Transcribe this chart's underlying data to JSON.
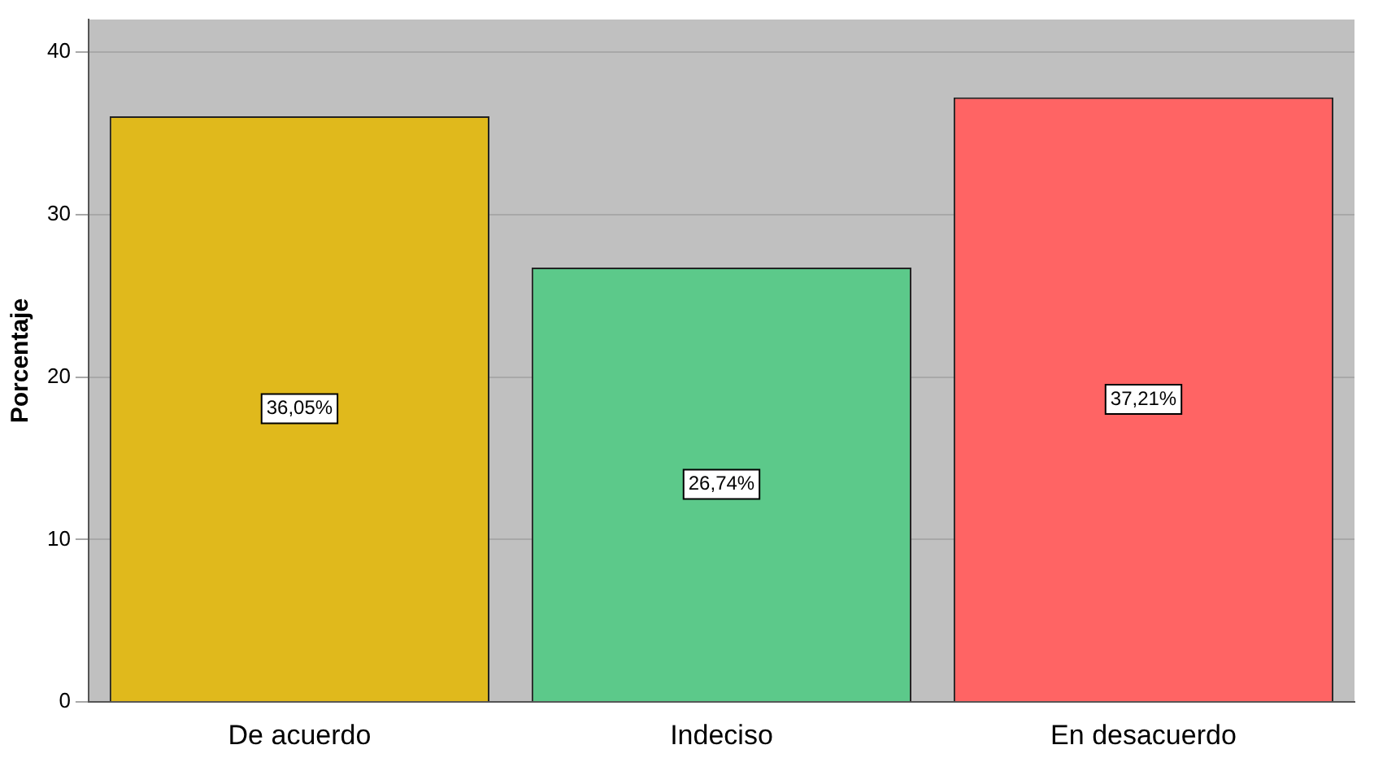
{
  "chart_data": {
    "type": "bar",
    "ylabel": "Porcentaje",
    "categories": [
      "De acuerdo",
      "Indeciso",
      "En desacuerdo"
    ],
    "values": [
      36.05,
      26.74,
      37.21
    ],
    "colors": [
      "#e0b91c",
      "#5cc98a",
      "#ff6464"
    ],
    "value_labels": [
      "36,05%",
      "26,74%",
      "37,21%"
    ],
    "ylim": [
      0,
      42
    ],
    "yticks": [
      0,
      10,
      20,
      30,
      40
    ],
    "grid": "y",
    "legend": false
  }
}
